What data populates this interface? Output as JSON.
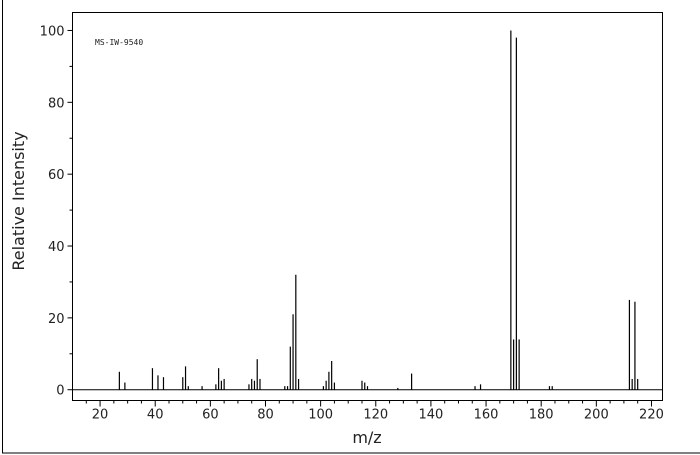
{
  "chart_data": {
    "type": "bar",
    "annotation": "MS-IW-9540",
    "x_label": "m/z",
    "y_label": "Relative Intensity",
    "x": [
      27,
      29,
      39,
      41,
      43,
      50,
      51,
      52,
      57,
      62,
      63,
      64,
      65,
      74,
      75,
      76,
      77,
      78,
      87,
      88,
      89,
      90,
      91,
      92,
      101,
      102,
      103,
      104,
      105,
      115,
      116,
      117,
      128,
      133,
      156,
      158,
      169,
      170,
      171,
      172,
      183,
      184,
      212,
      213,
      214,
      215
    ],
    "values": [
      5,
      2,
      6,
      4,
      3.5,
      3.5,
      6.5,
      1,
      1,
      1.5,
      6,
      2.5,
      3,
      1.5,
      3,
      2.5,
      8.5,
      3,
      1,
      1,
      12,
      21,
      32,
      3,
      1,
      2.5,
      5,
      8,
      2,
      2.5,
      2,
      1,
      0.5,
      4.5,
      1,
      1.5,
      100,
      14,
      98,
      14,
      1,
      1,
      25,
      3,
      24.5,
      3
    ],
    "color": "#000000",
    "xlim": [
      10,
      224
    ],
    "ylim": [
      -3,
      105
    ],
    "xticks": [
      20,
      40,
      60,
      80,
      100,
      120,
      140,
      160,
      180,
      200,
      220
    ],
    "yticks": [
      0,
      20,
      40,
      60,
      80,
      100
    ]
  }
}
